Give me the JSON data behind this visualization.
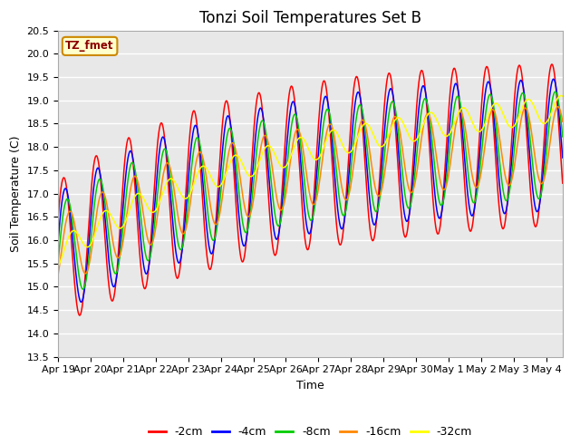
{
  "title": "Tonzi Soil Temperatures Set B",
  "xlabel": "Time",
  "ylabel": "Soil Temperature (C)",
  "ylim": [
    13.5,
    20.5
  ],
  "legend_label": "TZ_fmet",
  "series_labels": [
    "-2cm",
    "-4cm",
    "-8cm",
    "-16cm",
    "-32cm"
  ],
  "series_colors": [
    "#ff0000",
    "#0000ff",
    "#00cc00",
    "#ff8800",
    "#ffff00"
  ],
  "tick_labels": [
    "Apr 19",
    "Apr 20",
    "Apr 21",
    "Apr 22",
    "Apr 23",
    "Apr 24",
    "Apr 25",
    "Apr 26",
    "Apr 27",
    "Apr 28",
    "Apr 29",
    "Apr 30",
    "May 1",
    "May 2",
    "May 3",
    "May 4"
  ],
  "plot_bg_color": "#e8e8e8",
  "grid_color": "#ffffff",
  "title_fontsize": 12,
  "axis_label_fontsize": 9,
  "tick_fontsize": 8
}
